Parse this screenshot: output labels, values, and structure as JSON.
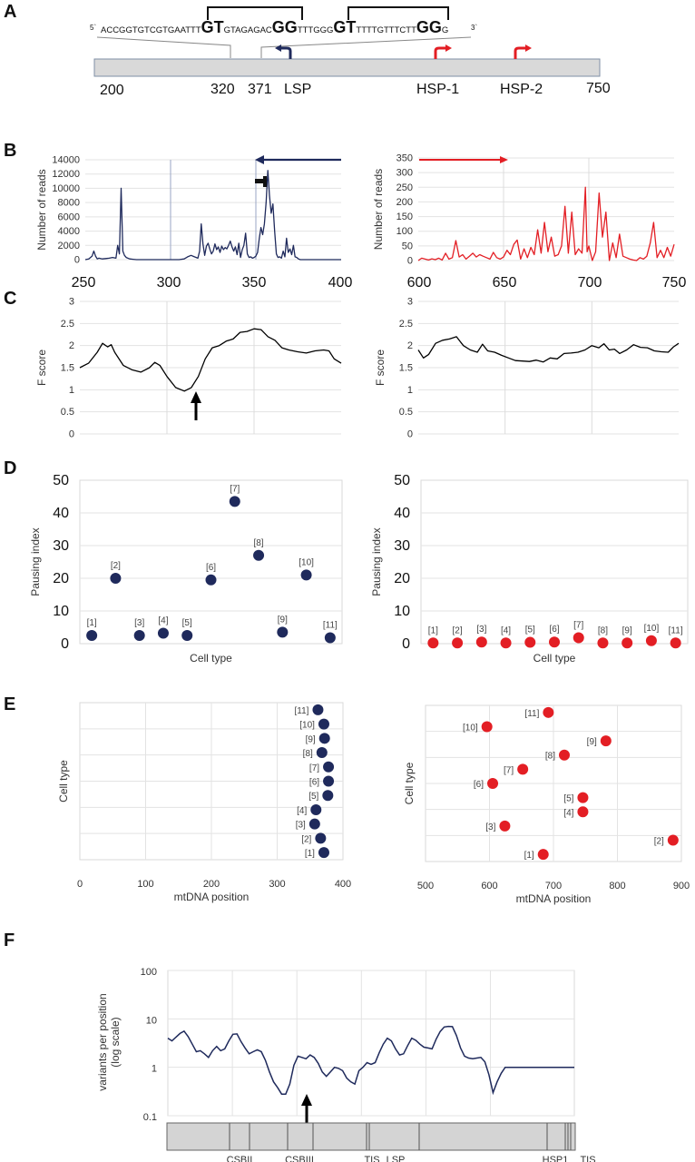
{
  "panels": {
    "A": {
      "letter": "A",
      "sequence": {
        "five_prime": "5`",
        "three_prime": "3`",
        "segments": [
          {
            "text": "ACCGGTGTCGTGAATTT",
            "big": false
          },
          {
            "text": "GT",
            "big": true
          },
          {
            "text": "GTAGAGAC",
            "big": false
          },
          {
            "text": "GG",
            "big": true
          },
          {
            "text": "TTTGGG",
            "big": false
          },
          {
            "text": "GT",
            "big": true
          },
          {
            "text": "TTTTGTTTCTT",
            "big": false
          },
          {
            "text": "GG",
            "big": true
          },
          {
            "text": "G",
            "big": false
          }
        ]
      },
      "map_labels": [
        "200",
        "320",
        "371",
        "LSP",
        "HSP-1",
        "HSP-2",
        "750"
      ],
      "promoters": [
        {
          "name": "LSP",
          "direction": "left",
          "color": "#1f2a5c"
        },
        {
          "name": "HSP-1",
          "direction": "right",
          "color": "#e31e24"
        },
        {
          "name": "HSP-2",
          "direction": "right",
          "color": "#e31e24"
        }
      ]
    },
    "B": {
      "letter": "B"
    },
    "C": {
      "letter": "C"
    },
    "D": {
      "letter": "D"
    },
    "E": {
      "letter": "E"
    },
    "F": {
      "letter": "F"
    }
  },
  "colors": {
    "navy": "#1f2a5c",
    "red": "#e31e24",
    "grid": "#d9d9d9",
    "bar": "#d4d4d4"
  },
  "chart_data": [
    {
      "id": "B-left",
      "type": "line",
      "ylabel": "Number of reads",
      "xlabel": "",
      "xlim": [
        250,
        400
      ],
      "ylim": [
        0,
        14000
      ],
      "yticks": [
        0,
        2000,
        4000,
        6000,
        8000,
        10000,
        12000,
        14000
      ],
      "xticks": [
        250,
        300,
        350,
        400
      ],
      "annotation": "arrow pointing left from 400 to 350; terminator glyph near 350",
      "series": [
        {
          "name": "reads",
          "color": "#1f2a5c",
          "x": [
            250,
            252,
            254,
            255,
            256,
            257,
            258,
            260,
            262,
            264,
            266,
            268,
            269,
            270,
            271,
            272,
            273,
            274,
            276,
            278,
            280,
            285,
            290,
            295,
            300,
            305,
            308,
            310,
            312,
            314,
            316,
            317,
            318,
            319,
            320,
            321,
            322,
            323,
            324,
            325,
            326,
            327,
            328,
            329,
            330,
            331,
            332,
            333,
            334,
            335,
            336,
            337,
            338,
            339,
            340,
            341,
            342,
            343,
            344,
            345,
            346,
            347,
            348,
            349,
            350,
            351,
            352,
            353,
            354,
            355,
            356,
            357,
            358,
            359,
            360,
            361,
            362,
            363,
            364,
            365,
            366,
            367,
            368,
            369,
            370,
            371,
            372,
            373,
            374,
            375,
            376,
            378,
            380,
            385,
            390,
            395,
            400
          ],
          "y": [
            0,
            100,
            500,
            1200,
            500,
            100,
            200,
            100,
            150,
            200,
            300,
            200,
            2000,
            800,
            10000,
            1200,
            600,
            300,
            100,
            50,
            0,
            0,
            0,
            0,
            0,
            0,
            100,
            400,
            600,
            400,
            200,
            1200,
            5000,
            2200,
            600,
            1900,
            2300,
            1500,
            800,
            1200,
            2200,
            1400,
            1800,
            1000,
            1900,
            1400,
            1700,
            1500,
            2000,
            2600,
            1800,
            1200,
            1800,
            700,
            2300,
            300,
            1400,
            2000,
            3700,
            800,
            300,
            400,
            200,
            300,
            500,
            1000,
            3000,
            4500,
            3500,
            5000,
            8000,
            12500,
            9000,
            6500,
            7800,
            4000,
            800,
            300,
            400,
            200,
            1200,
            400,
            3000,
            1000,
            1500,
            700,
            2000,
            400,
            300,
            100,
            0,
            0,
            0,
            0,
            0,
            0,
            0
          ]
        }
      ]
    },
    {
      "id": "B-right",
      "type": "line",
      "ylabel": "Number of reads",
      "xlabel": "",
      "xlim": [
        600,
        750
      ],
      "ylim": [
        0,
        350
      ],
      "yticks": [
        0,
        50,
        100,
        150,
        200,
        250,
        300,
        350
      ],
      "xticks": [
        600,
        650,
        700,
        750
      ],
      "annotation": "arrow pointing right from 600 to 652",
      "series": [
        {
          "name": "reads",
          "color": "#e31e24",
          "x": [
            600,
            602,
            604,
            606,
            608,
            610,
            612,
            614,
            616,
            618,
            620,
            622,
            624,
            626,
            628,
            630,
            632,
            634,
            636,
            638,
            640,
            642,
            644,
            646,
            648,
            650,
            652,
            654,
            656,
            658,
            660,
            662,
            664,
            666,
            668,
            670,
            672,
            674,
            676,
            678,
            680,
            682,
            684,
            686,
            688,
            690,
            692,
            694,
            696,
            698,
            699,
            700,
            702,
            704,
            706,
            708,
            710,
            712,
            714,
            716,
            718,
            720,
            722,
            724,
            726,
            728,
            730,
            732,
            734,
            736,
            738,
            740,
            742,
            744,
            746,
            748,
            750
          ],
          "y": [
            0,
            8,
            5,
            2,
            6,
            3,
            8,
            2,
            25,
            5,
            10,
            68,
            12,
            20,
            5,
            15,
            25,
            12,
            20,
            15,
            10,
            5,
            28,
            10,
            5,
            12,
            35,
            20,
            55,
            70,
            5,
            40,
            10,
            45,
            20,
            105,
            25,
            130,
            30,
            80,
            15,
            20,
            50,
            185,
            25,
            165,
            20,
            40,
            25,
            250,
            30,
            50,
            0,
            30,
            230,
            80,
            165,
            0,
            60,
            10,
            90,
            15,
            10,
            5,
            2,
            0,
            10,
            5,
            15,
            60,
            130,
            10,
            35,
            10,
            45,
            15,
            55
          ]
        }
      ]
    },
    {
      "id": "C-left",
      "type": "line",
      "ylabel": "F score",
      "xlabel": "",
      "xlim": [
        250,
        400
      ],
      "ylim": [
        0,
        3
      ],
      "yticks": [
        0,
        0.5,
        1,
        1.5,
        2,
        2.5,
        3
      ],
      "annotation": "up arrow at minimum (~315)",
      "series": [
        {
          "name": "F score",
          "color": "#000000",
          "x": [
            250,
            255,
            260,
            263,
            266,
            268,
            270,
            275,
            280,
            285,
            290,
            293,
            296,
            300,
            305,
            310,
            314,
            318,
            322,
            326,
            330,
            334,
            338,
            342,
            346,
            350,
            354,
            358,
            362,
            366,
            370,
            375,
            380,
            385,
            390,
            393,
            396,
            400
          ],
          "y": [
            1.5,
            1.6,
            1.85,
            2.05,
            1.97,
            2.02,
            1.85,
            1.55,
            1.45,
            1.4,
            1.5,
            1.62,
            1.55,
            1.3,
            1.05,
            0.97,
            1.05,
            1.3,
            1.7,
            1.95,
            2.0,
            2.1,
            2.15,
            2.3,
            2.32,
            2.38,
            2.36,
            2.2,
            2.12,
            1.95,
            1.9,
            1.86,
            1.83,
            1.88,
            1.9,
            1.88,
            1.7,
            1.6
          ]
        }
      ]
    },
    {
      "id": "C-right",
      "type": "line",
      "ylabel": "F score",
      "xlabel": "",
      "xlim": [
        600,
        750
      ],
      "ylim": [
        0,
        3
      ],
      "yticks": [
        0,
        0.5,
        1,
        1.5,
        2,
        2.5,
        3
      ],
      "series": [
        {
          "name": "F score",
          "color": "#000000",
          "x": [
            600,
            603,
            606,
            610,
            614,
            618,
            622,
            626,
            630,
            634,
            637,
            640,
            644,
            648,
            652,
            656,
            660,
            664,
            668,
            672,
            676,
            680,
            684,
            688,
            692,
            696,
            700,
            704,
            707,
            710,
            713,
            716,
            720,
            724,
            728,
            732,
            736,
            740,
            744,
            747,
            750
          ],
          "y": [
            1.9,
            1.72,
            1.8,
            2.05,
            2.12,
            2.15,
            2.2,
            2.0,
            1.9,
            1.85,
            2.03,
            1.88,
            1.85,
            1.78,
            1.72,
            1.66,
            1.65,
            1.64,
            1.67,
            1.63,
            1.72,
            1.7,
            1.82,
            1.83,
            1.85,
            1.9,
            2.0,
            1.95,
            2.04,
            1.9,
            1.92,
            1.82,
            1.9,
            2.02,
            1.96,
            1.95,
            1.88,
            1.86,
            1.85,
            1.97,
            2.05
          ]
        }
      ]
    },
    {
      "id": "D-left",
      "type": "scatter",
      "ylabel": "Pausing index",
      "xlabel": "Cell type",
      "ylim": [
        0,
        50
      ],
      "yticks": [
        0,
        10,
        20,
        30,
        40,
        50
      ],
      "categories": [
        "[1]",
        "[2]",
        "[3]",
        "[4]",
        "[5]",
        "[6]",
        "[7]",
        "[8]",
        "[9]",
        "[10]",
        "[11]"
      ],
      "values": [
        2.5,
        20,
        2.5,
        3.2,
        2.5,
        19.5,
        43.5,
        27,
        3.5,
        21,
        1.8
      ],
      "color": "#1f2a5c"
    },
    {
      "id": "D-right",
      "type": "scatter",
      "ylabel": "Pausing index",
      "xlabel": "Cell type",
      "ylim": [
        0,
        50
      ],
      "yticks": [
        0,
        10,
        20,
        30,
        40,
        50
      ],
      "categories": [
        "[1]",
        "[2]",
        "[3]",
        "[4]",
        "[5]",
        "[6]",
        "[7]",
        "[8]",
        "[9]",
        "[10]",
        "[11]"
      ],
      "values": [
        0.2,
        0.2,
        0.5,
        0.2,
        0.4,
        0.5,
        1.8,
        0.2,
        0.2,
        0.9,
        0.2
      ],
      "color": "#e31e24"
    },
    {
      "id": "E-left",
      "type": "scatter",
      "ylabel": "Cell type",
      "xlabel": "mtDNA position",
      "xlim": [
        0,
        400
      ],
      "xticks": [
        0,
        100,
        200,
        300,
        400
      ],
      "categories": [
        "[1]",
        "[2]",
        "[3]",
        "[4]",
        "[5]",
        "[6]",
        "[7]",
        "[8]",
        "[9]",
        "[10]",
        "[11]"
      ],
      "values": [
        371,
        366,
        357,
        359,
        377,
        378,
        378,
        368,
        372,
        371,
        362
      ],
      "color": "#1f2a5c"
    },
    {
      "id": "E-right",
      "type": "scatter",
      "ylabel": "Cell type",
      "xlabel": "mtDNA position",
      "xlim": [
        500,
        900
      ],
      "xticks": [
        500,
        600,
        700,
        800,
        900
      ],
      "categories": [
        "[1]",
        "[2]",
        "[3]",
        "[4]",
        "[5]",
        "[6]",
        "[7]",
        "[8]",
        "[9]",
        "[10]",
        "[11]"
      ],
      "values": [
        684,
        887,
        624,
        746,
        746,
        605,
        652,
        717,
        782,
        596,
        692
      ],
      "color": "#e31e24"
    },
    {
      "id": "F",
      "type": "line",
      "ylabel": "variants per position (log scale)",
      "xlabel": "",
      "yscale": "log",
      "ylim": [
        0.1,
        100
      ],
      "yticks": [
        "0.1",
        "1",
        "10",
        "100"
      ],
      "xlim": [
        0,
        1
      ],
      "annotation": "up arrow at minimum near CSBIII",
      "track_labels": [
        "CSBII",
        "CSBIII",
        "TIS",
        "LSP",
        "HSP1",
        "TIS"
      ],
      "series": [
        {
          "name": "variants",
          "color": "#1f2a5c",
          "x": [
            0,
            0.01,
            0.02,
            0.03,
            0.04,
            0.05,
            0.06,
            0.07,
            0.08,
            0.09,
            0.1,
            0.11,
            0.12,
            0.13,
            0.14,
            0.15,
            0.16,
            0.17,
            0.18,
            0.19,
            0.2,
            0.21,
            0.22,
            0.23,
            0.24,
            0.25,
            0.26,
            0.27,
            0.28,
            0.29,
            0.3,
            0.31,
            0.32,
            0.33,
            0.34,
            0.35,
            0.36,
            0.37,
            0.38,
            0.39,
            0.4,
            0.41,
            0.42,
            0.43,
            0.44,
            0.45,
            0.46,
            0.47,
            0.48,
            0.49,
            0.5,
            0.51,
            0.52,
            0.53,
            0.54,
            0.55,
            0.56,
            0.57,
            0.58,
            0.59,
            0.6,
            0.61,
            0.62,
            0.63,
            0.64,
            0.65,
            0.66,
            0.67,
            0.68,
            0.69,
            0.7,
            0.71,
            0.72,
            0.73,
            0.74,
            0.75,
            0.76,
            0.77,
            0.78,
            0.79,
            0.8,
            0.81,
            0.82,
            0.83,
            0.84,
            0.85,
            0.86,
            0.87,
            0.88,
            0.89,
            0.9,
            0.91,
            0.92,
            0.93,
            0.94,
            0.95,
            0.96,
            0.97,
            0.98,
            0.99,
            1.0
          ],
          "y": [
            4,
            3.5,
            4.2,
            5,
            5.6,
            4.3,
            3,
            2.1,
            2.2,
            1.9,
            1.6,
            2.2,
            2.7,
            2.2,
            2.4,
            3.5,
            4.8,
            4.9,
            3.4,
            2.5,
            1.9,
            2.1,
            2.3,
            2.1,
            1.4,
            0.8,
            0.5,
            0.38,
            0.28,
            0.28,
            0.45,
            1.1,
            1.7,
            1.6,
            1.5,
            1.8,
            1.6,
            1.2,
            0.8,
            0.65,
            0.8,
            1.0,
            0.95,
            0.85,
            0.6,
            0.5,
            0.45,
            0.85,
            1.0,
            1.25,
            1.15,
            1.25,
            2.0,
            3.0,
            4.0,
            3.5,
            2.4,
            1.8,
            1.9,
            2.8,
            4.0,
            3.6,
            3.0,
            2.6,
            2.5,
            2.4,
            3.8,
            5.5,
            6.8,
            7.0,
            6.9,
            4.5,
            2.5,
            1.7,
            1.55,
            1.5,
            1.55,
            1.6,
            1.3,
            0.7,
            0.3,
            0.5,
            0.75,
            1.0,
            1.0,
            1.0,
            1.0,
            1.0,
            1.0,
            1.0,
            1.0,
            1.0,
            1.0,
            1.0,
            1.0,
            1.0,
            1.0,
            1.0,
            1.0,
            1.0,
            1.0
          ]
        }
      ]
    }
  ]
}
